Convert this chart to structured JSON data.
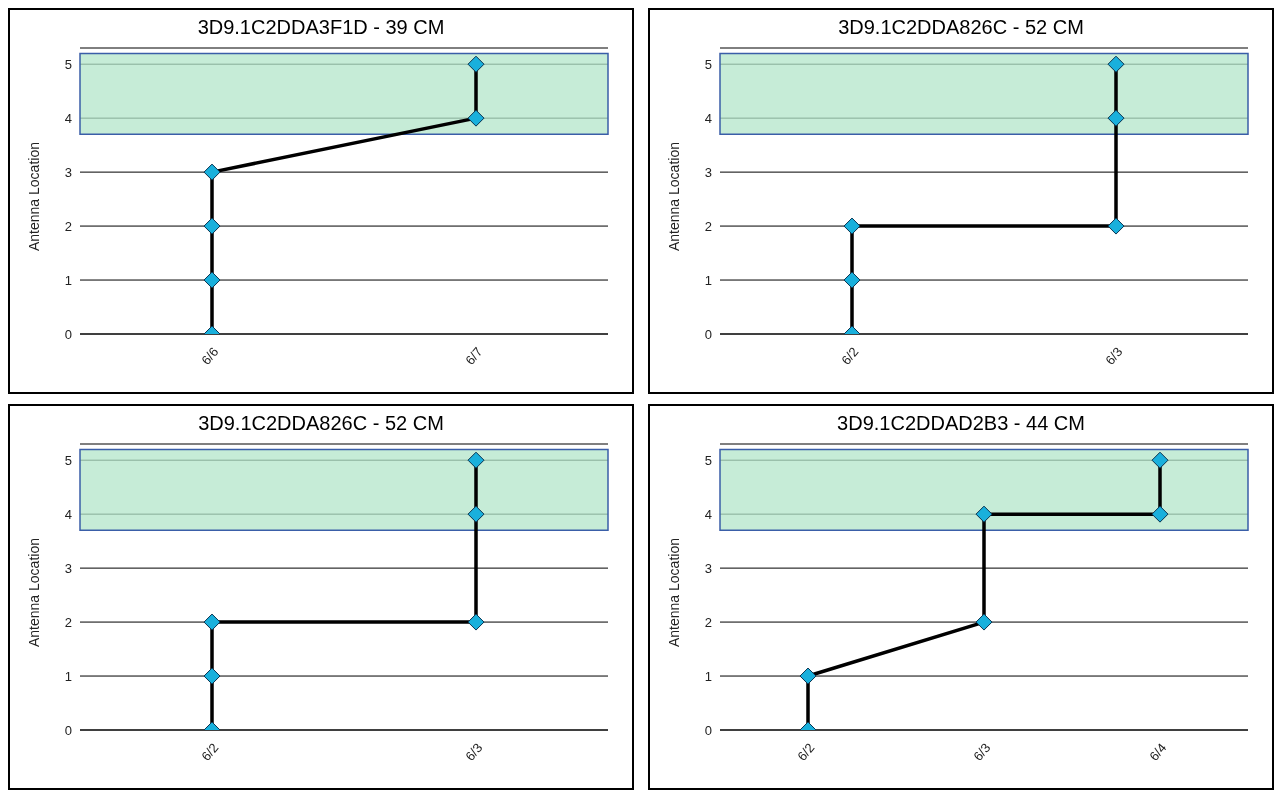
{
  "chart_data": [
    {
      "type": "line",
      "title": "3D9.1C2DDA3F1D - 39 CM",
      "ylabel": "Antenna Location",
      "categories": [
        "6/6",
        "6/7"
      ],
      "ylim": [
        0,
        5.3
      ],
      "yticks": [
        0,
        1,
        2,
        3,
        4,
        5
      ],
      "grid": "y",
      "marker": "diamond",
      "line_style": "solid",
      "bands": [
        {
          "axis": "y",
          "from": 3.7,
          "to": 5.2,
          "color": "#b3e6c9"
        }
      ],
      "series": [
        {
          "color": "#000000",
          "x": [
            "6/6",
            "6/6",
            "6/6",
            "6/6",
            "6/7",
            "6/7"
          ],
          "values": [
            0,
            1,
            2,
            3,
            4,
            5
          ]
        }
      ]
    },
    {
      "type": "line",
      "title": "3D9.1C2DDA826C - 52 CM",
      "ylabel": "Antenna Location",
      "categories": [
        "6/2",
        "6/3"
      ],
      "ylim": [
        0,
        5.3
      ],
      "yticks": [
        0,
        1,
        2,
        3,
        4,
        5
      ],
      "grid": "y",
      "marker": "diamond",
      "line_style": "solid",
      "bands": [
        {
          "axis": "y",
          "from": 3.7,
          "to": 5.2,
          "color": "#b3e6c9"
        }
      ],
      "series": [
        {
          "color": "#000000",
          "x": [
            "6/2",
            "6/2",
            "6/2",
            "6/3",
            "6/3",
            "6/3"
          ],
          "values": [
            0,
            1,
            2,
            2,
            4,
            5
          ]
        }
      ]
    },
    {
      "type": "line",
      "title": "3D9.1C2DDA826C - 52 CM",
      "ylabel": "Antenna Location",
      "categories": [
        "6/2",
        "6/3"
      ],
      "ylim": [
        0,
        5.3
      ],
      "yticks": [
        0,
        1,
        2,
        3,
        4,
        5
      ],
      "grid": "y",
      "marker": "diamond",
      "line_style": "solid",
      "bands": [
        {
          "axis": "y",
          "from": 3.7,
          "to": 5.2,
          "color": "#b3e6c9"
        }
      ],
      "series": [
        {
          "color": "#000000",
          "x": [
            "6/2",
            "6/2",
            "6/2",
            "6/3",
            "6/3",
            "6/3"
          ],
          "values": [
            0,
            1,
            2,
            2,
            4,
            5
          ]
        }
      ]
    },
    {
      "type": "line",
      "title": "3D9.1C2DDAD2B3 - 44 CM",
      "ylabel": "Antenna Location",
      "categories": [
        "6/2",
        "6/3",
        "6/4"
      ],
      "ylim": [
        0,
        5.3
      ],
      "yticks": [
        0,
        1,
        2,
        3,
        4,
        5
      ],
      "grid": "y",
      "marker": "diamond",
      "line_style": "solid",
      "bands": [
        {
          "axis": "y",
          "from": 3.7,
          "to": 5.2,
          "color": "#b3e6c9"
        }
      ],
      "series": [
        {
          "color": "#000000",
          "x": [
            "6/2",
            "6/2",
            "6/3",
            "6/3",
            "6/4",
            "6/4"
          ],
          "values": [
            0,
            1,
            2,
            4,
            4,
            5
          ]
        }
      ]
    }
  ]
}
